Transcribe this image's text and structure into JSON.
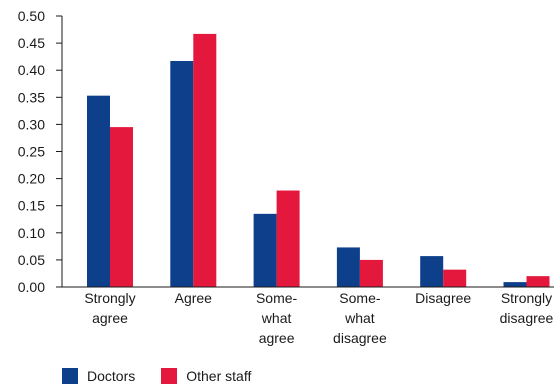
{
  "chart_data": {
    "type": "bar",
    "categories": [
      [
        "Strongly",
        "agree"
      ],
      [
        "Agree"
      ],
      [
        "Some-",
        "what",
        "agree"
      ],
      [
        "Some-",
        "what",
        "disagree"
      ],
      [
        "Disagree"
      ],
      [
        "Strongly",
        "disagree"
      ]
    ],
    "series": [
      {
        "name": "Doctors",
        "color": "#0d3f8a",
        "values": [
          0.353,
          0.417,
          0.135,
          0.073,
          0.057,
          0.009
        ]
      },
      {
        "name": "Other staff",
        "color": "#e4173d",
        "values": [
          0.295,
          0.467,
          0.178,
          0.05,
          0.032,
          0.02
        ]
      }
    ],
    "yticks": [
      "0.00",
      "0.05",
      "0.10",
      "0.15",
      "0.20",
      "0.25",
      "0.30",
      "0.35",
      "0.40",
      "0.45",
      "0.50"
    ],
    "ylim": [
      0,
      0.5
    ],
    "title": "",
    "xlabel": "",
    "ylabel": "",
    "legend_position": "bottom-left",
    "grid": false
  }
}
